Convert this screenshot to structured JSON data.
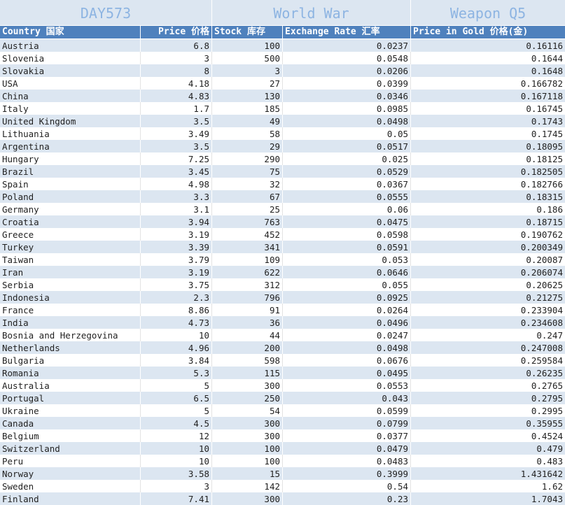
{
  "banner": {
    "day": "DAY573",
    "game": "World War",
    "item": "Weapon Q5"
  },
  "headers": [
    "Country 国家",
    "Price 价格",
    "Stock 库存",
    "Exchange Rate 汇率",
    "Price in Gold 价格(金)"
  ],
  "colors": {
    "banner_bg": "#dce6f1",
    "banner_text": "#8db4e2",
    "header_bg": "#4f81bd",
    "stripe": "#dce6f1"
  },
  "rows": [
    [
      "Austria",
      "6.8",
      "100",
      "0.0237",
      "0.16116"
    ],
    [
      "Slovenia",
      "3",
      "500",
      "0.0548",
      "0.1644"
    ],
    [
      "Slovakia",
      "8",
      "3",
      "0.0206",
      "0.1648"
    ],
    [
      "USA",
      "4.18",
      "27",
      "0.0399",
      "0.166782"
    ],
    [
      "China",
      "4.83",
      "130",
      "0.0346",
      "0.167118"
    ],
    [
      "Italy",
      "1.7",
      "185",
      "0.0985",
      "0.16745"
    ],
    [
      "United Kingdom",
      "3.5",
      "49",
      "0.0498",
      "0.1743"
    ],
    [
      "Lithuania",
      "3.49",
      "58",
      "0.05",
      "0.1745"
    ],
    [
      "Argentina",
      "3.5",
      "29",
      "0.0517",
      "0.18095"
    ],
    [
      "Hungary",
      "7.25",
      "290",
      "0.025",
      "0.18125"
    ],
    [
      "Brazil",
      "3.45",
      "75",
      "0.0529",
      "0.182505"
    ],
    [
      "Spain",
      "4.98",
      "32",
      "0.0367",
      "0.182766"
    ],
    [
      "Poland",
      "3.3",
      "67",
      "0.0555",
      "0.18315"
    ],
    [
      "Germany",
      "3.1",
      "25",
      "0.06",
      "0.186"
    ],
    [
      "Croatia",
      "3.94",
      "763",
      "0.0475",
      "0.18715"
    ],
    [
      "Greece",
      "3.19",
      "452",
      "0.0598",
      "0.190762"
    ],
    [
      "Turkey",
      "3.39",
      "341",
      "0.0591",
      "0.200349"
    ],
    [
      "Taiwan",
      "3.79",
      "109",
      "0.053",
      "0.20087"
    ],
    [
      "Iran",
      "3.19",
      "622",
      "0.0646",
      "0.206074"
    ],
    [
      "Serbia",
      "3.75",
      "312",
      "0.055",
      "0.20625"
    ],
    [
      "Indonesia",
      "2.3",
      "796",
      "0.0925",
      "0.21275"
    ],
    [
      "France",
      "8.86",
      "91",
      "0.0264",
      "0.233904"
    ],
    [
      "India",
      "4.73",
      "36",
      "0.0496",
      "0.234608"
    ],
    [
      "Bosnia and Herzegovina",
      "10",
      "44",
      "0.0247",
      "0.247"
    ],
    [
      "Netherlands",
      "4.96",
      "200",
      "0.0498",
      "0.247008"
    ],
    [
      "Bulgaria",
      "3.84",
      "598",
      "0.0676",
      "0.259584"
    ],
    [
      "Romania",
      "5.3",
      "115",
      "0.0495",
      "0.26235"
    ],
    [
      "Australia",
      "5",
      "300",
      "0.0553",
      "0.2765"
    ],
    [
      "Portugal",
      "6.5",
      "250",
      "0.043",
      "0.2795"
    ],
    [
      "Ukraine",
      "5",
      "54",
      "0.0599",
      "0.2995"
    ],
    [
      "Canada",
      "4.5",
      "300",
      "0.0799",
      "0.35955"
    ],
    [
      "Belgium",
      "12",
      "300",
      "0.0377",
      "0.4524"
    ],
    [
      "Switzerland",
      "10",
      "100",
      "0.0479",
      "0.479"
    ],
    [
      "Peru",
      "10",
      "100",
      "0.0483",
      "0.483"
    ],
    [
      "Norway",
      "3.58",
      "15",
      "0.3999",
      "1.431642"
    ],
    [
      "Sweden",
      "3",
      "142",
      "0.54",
      "1.62"
    ],
    [
      "Finland",
      "7.41",
      "300",
      "0.23",
      "1.7043"
    ]
  ]
}
